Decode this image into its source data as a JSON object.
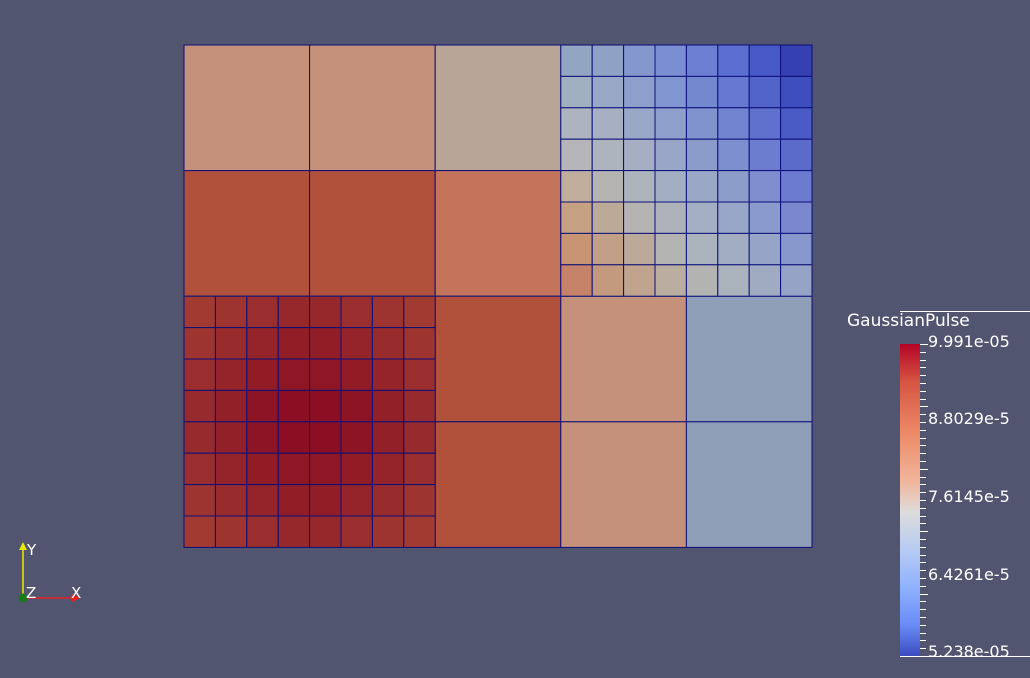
{
  "viewport": {
    "background": "#525570",
    "mesh_edge_color": "#0b0f7a"
  },
  "mesh": {
    "color_scale": "coolwarm",
    "cells": [
      {
        "level": 1,
        "col": 0,
        "row": 0,
        "color": "#c5917a"
      },
      {
        "level": 1,
        "col": 1,
        "row": 0,
        "color": "#c5917a"
      },
      {
        "level": 1,
        "col": 2,
        "row": 0,
        "color": "#b9a597"
      },
      {
        "level": 1,
        "col": 0,
        "row": 1,
        "color": "#b1503b"
      },
      {
        "level": 1,
        "col": 1,
        "row": 1,
        "color": "#b1503b"
      },
      {
        "level": 1,
        "col": 2,
        "row": 1,
        "color": "#c4745a"
      },
      {
        "level": 1,
        "col": 2,
        "row": 2,
        "color": "#b1503b"
      },
      {
        "level": 1,
        "col": 3,
        "row": 2,
        "color": "#c5917a"
      },
      {
        "level": 1,
        "col": 4,
        "row": 2,
        "color": "#8f9fb8"
      },
      {
        "level": 1,
        "col": 2,
        "row": 3,
        "color": "#b1503b"
      },
      {
        "level": 1,
        "col": 3,
        "row": 3,
        "color": "#c5917a"
      },
      {
        "level": 1,
        "col": 4,
        "row": 3,
        "color": "#8f9fb8"
      }
    ],
    "fine_blocks": [
      {
        "name": "top-right",
        "col": 3,
        "row": 0,
        "span": 2,
        "colors": [
          [
            "#93a6c1",
            "#8fa2c6",
            "#8598cd",
            "#7a8ed1",
            "#6d7fd3",
            "#5c6ed0",
            "#4758c7",
            "#3540b3"
          ],
          [
            "#a1b0c1",
            "#98a8c6",
            "#8d9fcb",
            "#8195d0",
            "#7488d0",
            "#6678d0",
            "#5263c9",
            "#3f4ebd"
          ],
          [
            "#adb4bf",
            "#a6b0c2",
            "#9aa8c8",
            "#8f9fcb",
            "#8193cf",
            "#7284d0",
            "#5f70cd",
            "#4a5bc5"
          ],
          [
            "#b6b5ba",
            "#aeb4be",
            "#a5aec3",
            "#99a6c8",
            "#8c9cca",
            "#7e8fcf",
            "#6c7dcf",
            "#5a6bca"
          ],
          [
            "#c0ae9d",
            "#b6b4b3",
            "#adb4bb",
            "#a4aec2",
            "#9aa8c6",
            "#8d9dca",
            "#7e8ece",
            "#6c7bcf"
          ],
          [
            "#c5a083",
            "#bcaa98",
            "#b6b4b2",
            "#adb2ba",
            "#a3afc2",
            "#98a7c7",
            "#8a9acc",
            "#7a89ce"
          ],
          [
            "#c79474",
            "#c1a087",
            "#bbaa9a",
            "#b4b4b3",
            "#abb3bc",
            "#a2adc2",
            "#96a4c8",
            "#8798cc"
          ],
          [
            "#c7836a",
            "#c49a7f",
            "#c0a48d",
            "#b9ae9f",
            "#b3b4b2",
            "#aab2bc",
            "#a0abc2",
            "#95a3c6"
          ]
        ]
      },
      {
        "name": "bottom-left",
        "col": 0,
        "row": 2,
        "span": 2,
        "colors": [
          [
            "#a13a31",
            "#9d3430",
            "#9a2d2d",
            "#96282c",
            "#96282c",
            "#9a2d2d",
            "#9d3430",
            "#a13a31"
          ],
          [
            "#9d3430",
            "#982b2c",
            "#942429",
            "#911d27",
            "#911d27",
            "#942429",
            "#982b2c",
            "#9d3430"
          ],
          [
            "#9a2d2d",
            "#942429",
            "#911c26",
            "#8f1624",
            "#8f1624",
            "#911c26",
            "#942429",
            "#9a2d2d"
          ],
          [
            "#972a2c",
            "#912028",
            "#8d1425",
            "#8b0e22",
            "#8b0e22",
            "#8d1425",
            "#912028",
            "#972a2c"
          ],
          [
            "#972a2c",
            "#912028",
            "#8d1425",
            "#8b0e22",
            "#8b0e22",
            "#8d1425",
            "#912028",
            "#972a2c"
          ],
          [
            "#9a2d2d",
            "#942429",
            "#911c26",
            "#8f1624",
            "#8f1624",
            "#911c26",
            "#942429",
            "#9a2d2d"
          ],
          [
            "#9d3430",
            "#982b2c",
            "#942429",
            "#911d27",
            "#911d27",
            "#942429",
            "#982b2c",
            "#9d3430"
          ],
          [
            "#a13a31",
            "#9d3430",
            "#9a2d2d",
            "#96282c",
            "#96282c",
            "#9a2d2d",
            "#9d3430",
            "#a13a31"
          ]
        ]
      }
    ]
  },
  "scalar_bar": {
    "title": "GaussianPulse",
    "labels": [
      {
        "text": "9.991e-05",
        "value": 9.991e-05
      },
      {
        "text": "8.8029e-5",
        "value": 8.8029e-05
      },
      {
        "text": "7.6145e-5",
        "value": 7.6145e-05
      },
      {
        "text": "6.4261e-5",
        "value": 6.4261e-05
      },
      {
        "text": "5.238e-05",
        "value": 5.238e-05
      }
    ],
    "range": [
      5.238e-05,
      9.991e-05
    ],
    "colormap": [
      "#b40426",
      "#dddcdc",
      "#3b4cc0"
    ]
  },
  "orientation_axes": {
    "y_label": "Y",
    "z_label": "Z",
    "x_label": "X",
    "y_color": "#e8e800",
    "x_color": "#e82020",
    "z_color": "#1a7a1a"
  }
}
